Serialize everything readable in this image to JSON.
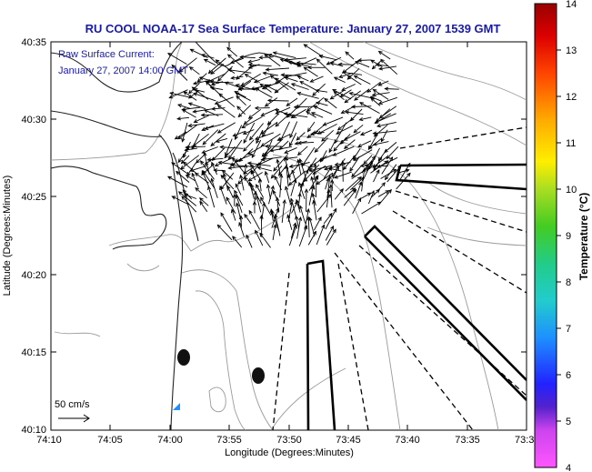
{
  "title": "RU COOL  NOAA-17  Sea Surface Temperature:  January 27, 2007 1539 GMT",
  "annotation": {
    "line1": "Raw Surface Current:",
    "line2": "January 27, 2007 14:00 GMT"
  },
  "scale_label": "50 cm/s",
  "x_axis": {
    "label": "Longitude (Degrees:Minutes)",
    "ticks": [
      "74:10",
      "74:05",
      "74:00",
      "73:55",
      "73:50",
      "73:45",
      "73:40",
      "73:35",
      "73:3"
    ]
  },
  "y_axis": {
    "label": "Latitude (Degrees:Minutes)",
    "ticks": [
      "40:35",
      "40:30",
      "40:25",
      "40:20",
      "40:15",
      "40:10"
    ]
  },
  "colorbar": {
    "label": "Temperature (°C)",
    "ticks": [
      "14",
      "13",
      "12",
      "11",
      "10",
      "9",
      "8",
      "7",
      "6",
      "5",
      "4"
    ],
    "min": 4,
    "max": 14
  },
  "colors": {
    "title": "#1a1aa8",
    "bathymetry": "#9a9a9a",
    "coast": "#222222",
    "markers": "#111111",
    "sst_patch": "#1e90ff"
  }
}
